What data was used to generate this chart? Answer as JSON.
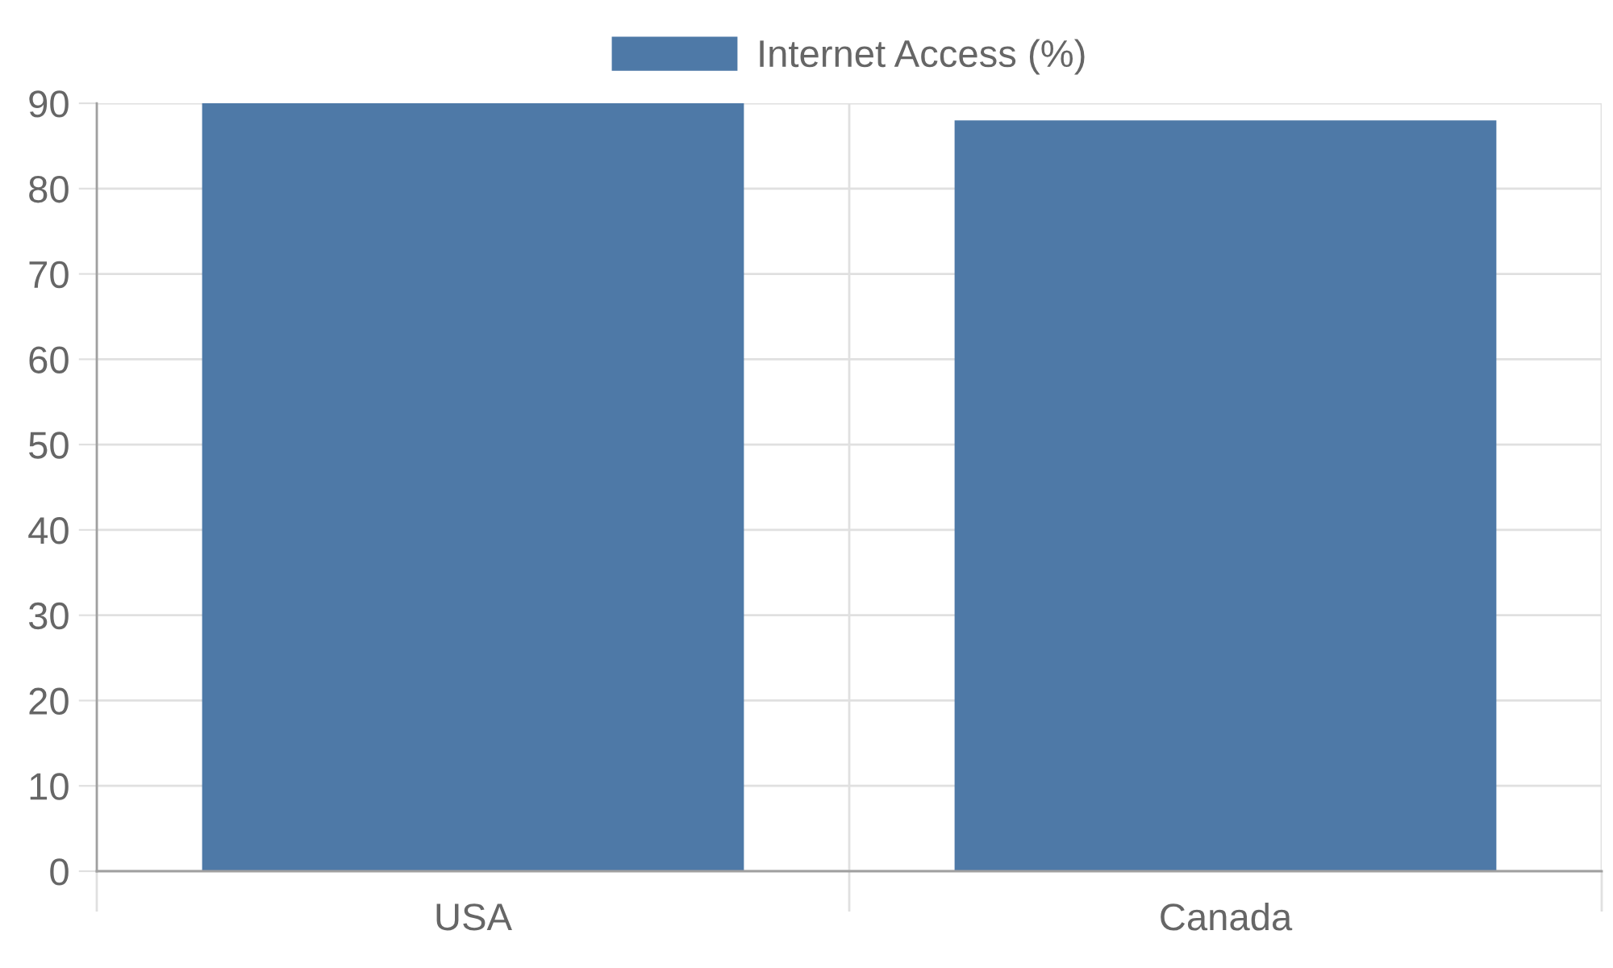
{
  "chart_data": {
    "type": "bar",
    "categories": [
      "USA",
      "Canada"
    ],
    "series": [
      {
        "name": "Internet Access (%)",
        "color": "#4e79a7",
        "values": [
          90,
          88
        ]
      }
    ],
    "ylim": [
      0,
      90
    ],
    "yticks": [
      0,
      10,
      20,
      30,
      40,
      50,
      60,
      70,
      80,
      90
    ],
    "grid": true,
    "legend": "top"
  }
}
